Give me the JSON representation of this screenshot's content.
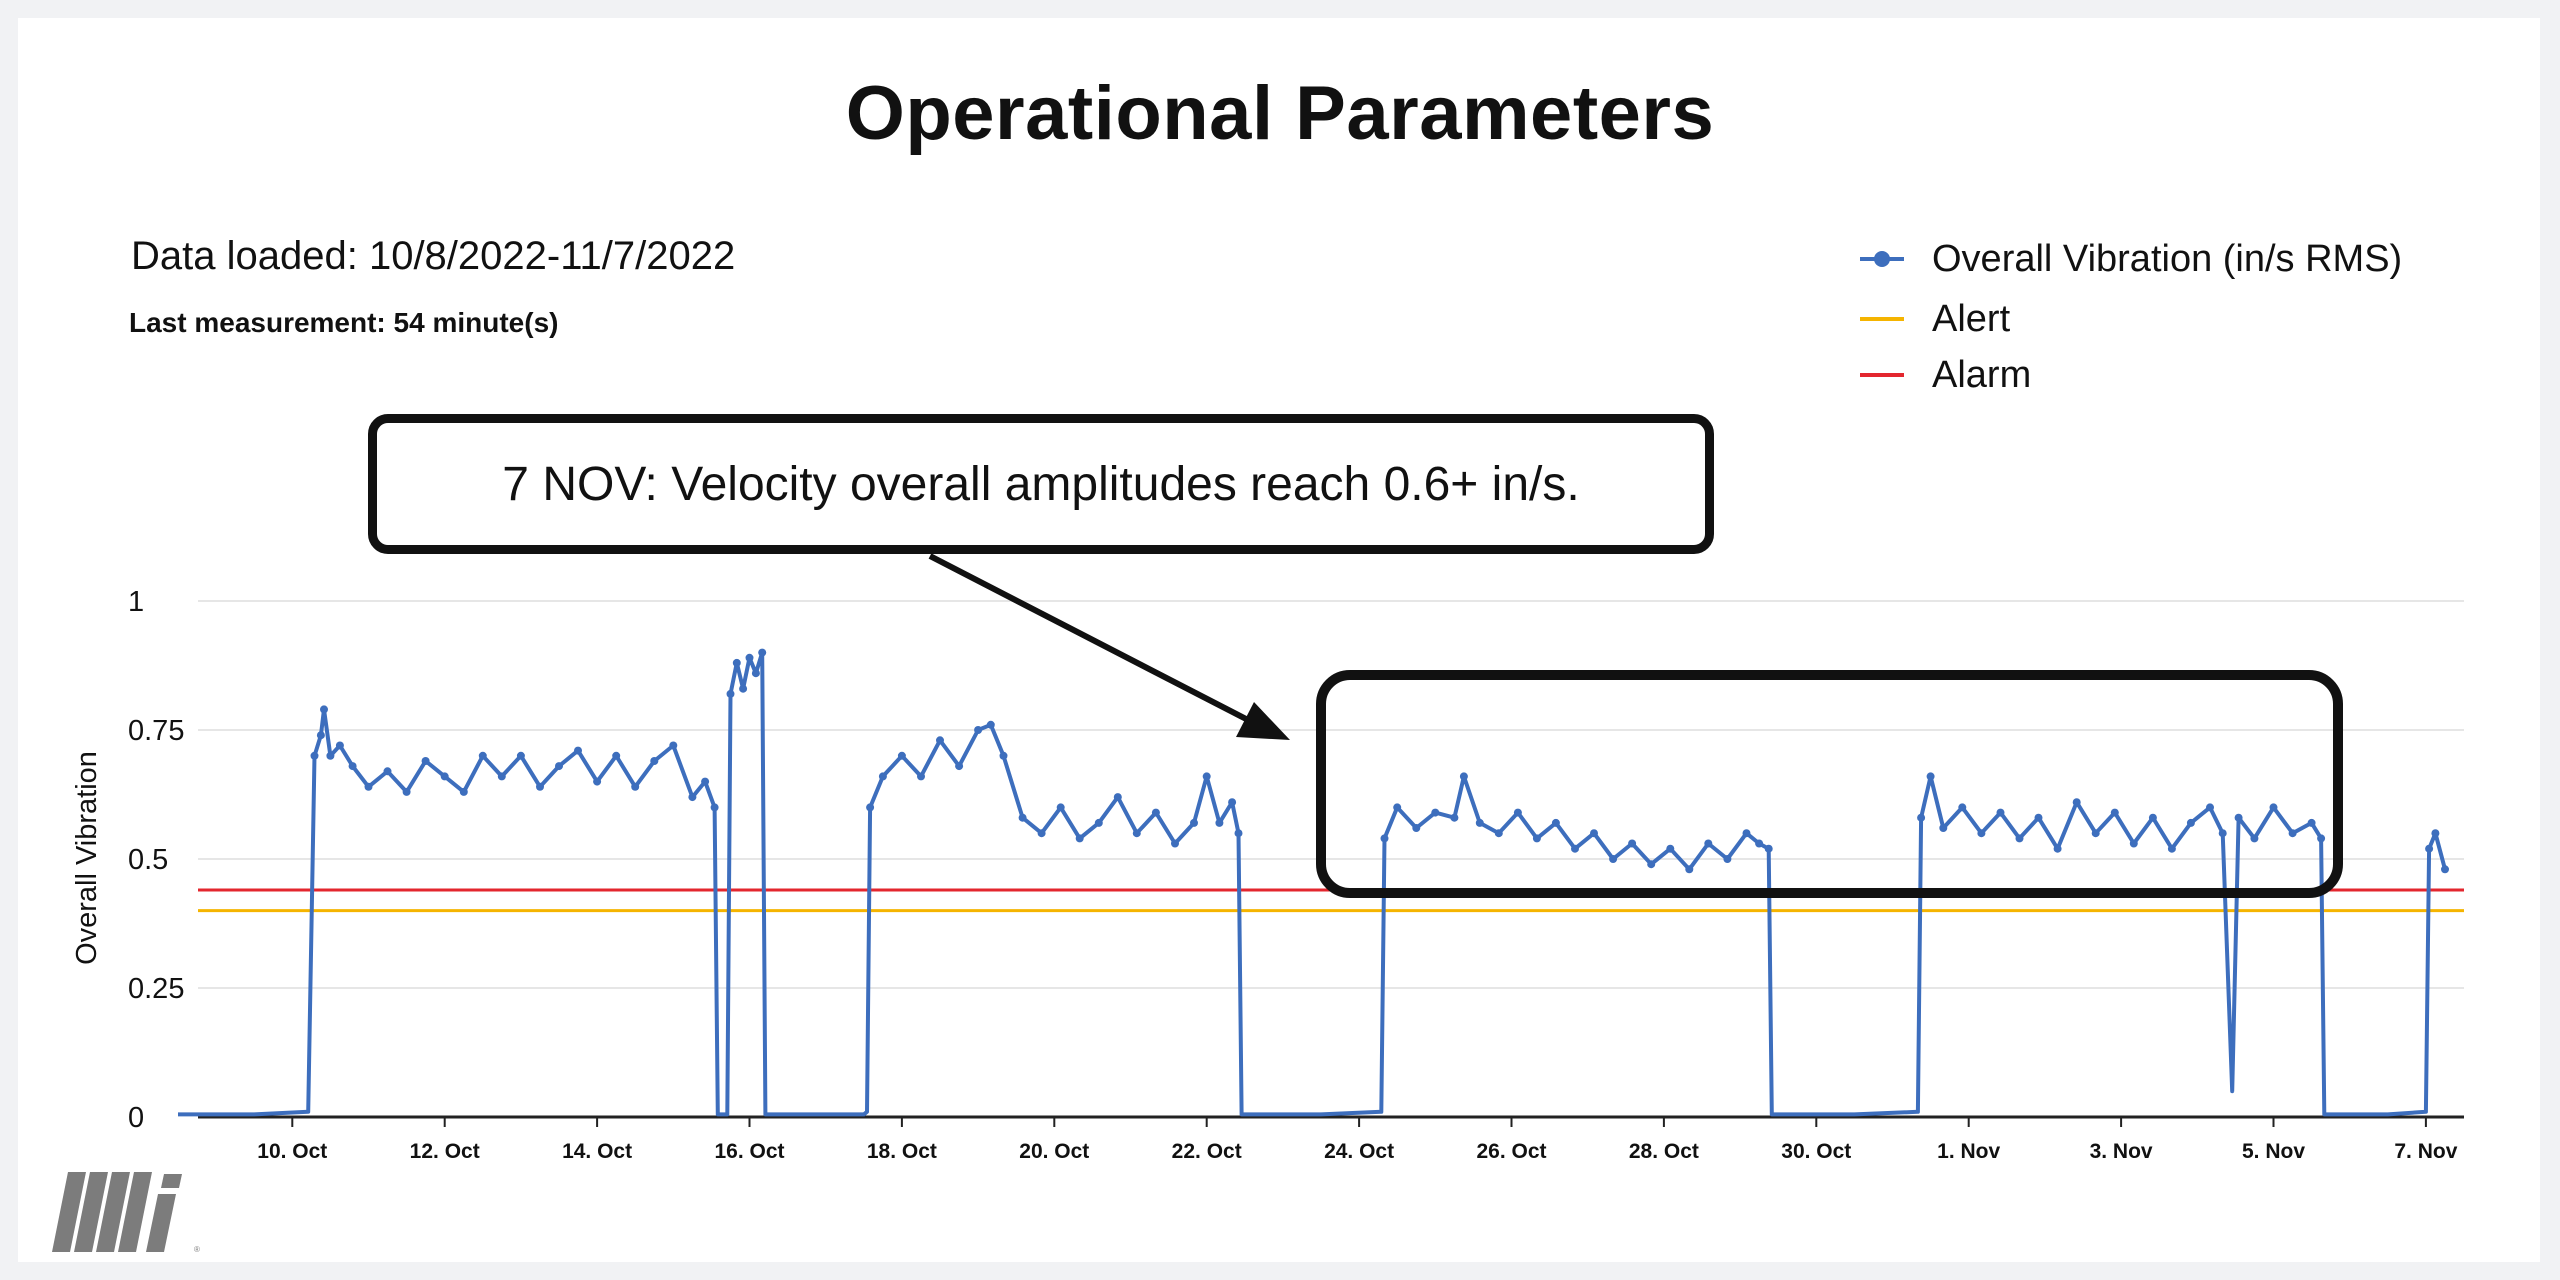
{
  "title": "Operational Parameters",
  "data_loaded": "Data loaded: 10/8/2022-11/7/2022",
  "last_measurement": "Last measurement: 54 minute(s)",
  "callout_text": "7 NOV: Velocity overall amplitudes reach 0.6+ in/s.",
  "logo_text": "Mi",
  "colors": {
    "series": "#3d6ebd",
    "alert": "#f5b400",
    "alarm": "#e3262e",
    "grid": "#e6e6e6"
  },
  "legend": [
    {
      "label": "Overall Vibration (in/s RMS)",
      "color": "#3d6ebd",
      "marker": "line-dot"
    },
    {
      "label": "Alert",
      "color": "#f5b400",
      "marker": "line"
    },
    {
      "label": "Alarm",
      "color": "#e3262e",
      "marker": "line"
    }
  ],
  "chart_data": {
    "type": "line",
    "title": "",
    "xlabel": "",
    "ylabel": "Overall Vibration",
    "ylim": [
      0,
      1
    ],
    "yticks": [
      0,
      0.25,
      0.5,
      0.75,
      1
    ],
    "ytick_labels": [
      "0",
      "0.25",
      "0.5",
      "0.75",
      "1"
    ],
    "xlim": [
      "2022-10-08T12:00",
      "2022-11-07T12:00"
    ],
    "xticks": [
      "2022-10-10",
      "2022-10-12",
      "2022-10-14",
      "2022-10-16",
      "2022-10-18",
      "2022-10-20",
      "2022-10-22",
      "2022-10-24",
      "2022-10-26",
      "2022-10-28",
      "2022-10-30",
      "2022-11-01",
      "2022-11-03",
      "2022-11-05",
      "2022-11-07"
    ],
    "xtick_labels": [
      "10. Oct",
      "12. Oct",
      "14. Oct",
      "16. Oct",
      "18. Oct",
      "20. Oct",
      "22. Oct",
      "24. Oct",
      "26. Oct",
      "28. Oct",
      "30. Oct",
      "1. Nov",
      "3. Nov",
      "5. Nov",
      "7. Nov"
    ],
    "grid": true,
    "legend_position": "top-right",
    "thresholds": [
      {
        "name": "Alert",
        "value": 0.4,
        "color": "#f5b400"
      },
      {
        "name": "Alarm",
        "value": 0.44,
        "color": "#e3262e"
      }
    ],
    "series": [
      {
        "name": "Overall Vibration (in/s RMS)",
        "color": "#3d6ebd",
        "points": [
          [
            "2022-10-08T12:00",
            0.005
          ],
          [
            "2022-10-09T12:00",
            0.005
          ],
          [
            "2022-10-10T05:00",
            0.01
          ],
          [
            "2022-10-10T07:00",
            0.7
          ],
          [
            "2022-10-10T09:00",
            0.74
          ],
          [
            "2022-10-10T10:00",
            0.79
          ],
          [
            "2022-10-10T12:00",
            0.7
          ],
          [
            "2022-10-10T15:00",
            0.72
          ],
          [
            "2022-10-10T19:00",
            0.68
          ],
          [
            "2022-10-11T00:00",
            0.64
          ],
          [
            "2022-10-11T06:00",
            0.67
          ],
          [
            "2022-10-11T12:00",
            0.63
          ],
          [
            "2022-10-11T18:00",
            0.69
          ],
          [
            "2022-10-12T00:00",
            0.66
          ],
          [
            "2022-10-12T06:00",
            0.63
          ],
          [
            "2022-10-12T12:00",
            0.7
          ],
          [
            "2022-10-12T18:00",
            0.66
          ],
          [
            "2022-10-13T00:00",
            0.7
          ],
          [
            "2022-10-13T06:00",
            0.64
          ],
          [
            "2022-10-13T12:00",
            0.68
          ],
          [
            "2022-10-13T18:00",
            0.71
          ],
          [
            "2022-10-14T00:00",
            0.65
          ],
          [
            "2022-10-14T06:00",
            0.7
          ],
          [
            "2022-10-14T12:00",
            0.64
          ],
          [
            "2022-10-14T18:00",
            0.69
          ],
          [
            "2022-10-15T00:00",
            0.72
          ],
          [
            "2022-10-15T06:00",
            0.62
          ],
          [
            "2022-10-15T10:00",
            0.65
          ],
          [
            "2022-10-15T13:00",
            0.6
          ],
          [
            "2022-10-15T14:00",
            0.005
          ],
          [
            "2022-10-15T17:00",
            0.005
          ],
          [
            "2022-10-15T18:00",
            0.82
          ],
          [
            "2022-10-15T20:00",
            0.88
          ],
          [
            "2022-10-15T22:00",
            0.83
          ],
          [
            "2022-10-16T00:00",
            0.89
          ],
          [
            "2022-10-16T02:00",
            0.86
          ],
          [
            "2022-10-16T04:00",
            0.9
          ],
          [
            "2022-10-16T05:00",
            0.005
          ],
          [
            "2022-10-17T12:00",
            0.005
          ],
          [
            "2022-10-17T13:00",
            0.01
          ],
          [
            "2022-10-17T14:00",
            0.6
          ],
          [
            "2022-10-17T18:00",
            0.66
          ],
          [
            "2022-10-18T00:00",
            0.7
          ],
          [
            "2022-10-18T06:00",
            0.66
          ],
          [
            "2022-10-18T12:00",
            0.73
          ],
          [
            "2022-10-18T18:00",
            0.68
          ],
          [
            "2022-10-19T00:00",
            0.75
          ],
          [
            "2022-10-19T04:00",
            0.76
          ],
          [
            "2022-10-19T08:00",
            0.7
          ],
          [
            "2022-10-19T14:00",
            0.58
          ],
          [
            "2022-10-19T20:00",
            0.55
          ],
          [
            "2022-10-20T02:00",
            0.6
          ],
          [
            "2022-10-20T08:00",
            0.54
          ],
          [
            "2022-10-20T14:00",
            0.57
          ],
          [
            "2022-10-20T20:00",
            0.62
          ],
          [
            "2022-10-21T02:00",
            0.55
          ],
          [
            "2022-10-21T08:00",
            0.59
          ],
          [
            "2022-10-21T14:00",
            0.53
          ],
          [
            "2022-10-21T20:00",
            0.57
          ],
          [
            "2022-10-22T00:00",
            0.66
          ],
          [
            "2022-10-22T04:00",
            0.57
          ],
          [
            "2022-10-22T08:00",
            0.61
          ],
          [
            "2022-10-22T10:00",
            0.55
          ],
          [
            "2022-10-22T11:00",
            0.005
          ],
          [
            "2022-10-23T12:00",
            0.005
          ],
          [
            "2022-10-24T07:00",
            0.01
          ],
          [
            "2022-10-24T08:00",
            0.54
          ],
          [
            "2022-10-24T12:00",
            0.6
          ],
          [
            "2022-10-24T18:00",
            0.56
          ],
          [
            "2022-10-25T00:00",
            0.59
          ],
          [
            "2022-10-25T06:00",
            0.58
          ],
          [
            "2022-10-25T09:00",
            0.66
          ],
          [
            "2022-10-25T14:00",
            0.57
          ],
          [
            "2022-10-25T20:00",
            0.55
          ],
          [
            "2022-10-26T02:00",
            0.59
          ],
          [
            "2022-10-26T08:00",
            0.54
          ],
          [
            "2022-10-26T14:00",
            0.57
          ],
          [
            "2022-10-26T20:00",
            0.52
          ],
          [
            "2022-10-27T02:00",
            0.55
          ],
          [
            "2022-10-27T08:00",
            0.5
          ],
          [
            "2022-10-27T14:00",
            0.53
          ],
          [
            "2022-10-27T20:00",
            0.49
          ],
          [
            "2022-10-28T02:00",
            0.52
          ],
          [
            "2022-10-28T08:00",
            0.48
          ],
          [
            "2022-10-28T14:00",
            0.53
          ],
          [
            "2022-10-28T20:00",
            0.5
          ],
          [
            "2022-10-29T02:00",
            0.55
          ],
          [
            "2022-10-29T06:00",
            0.53
          ],
          [
            "2022-10-29T09:00",
            0.52
          ],
          [
            "2022-10-29T10:00",
            0.005
          ],
          [
            "2022-10-30T12:00",
            0.005
          ],
          [
            "2022-10-31T08:00",
            0.01
          ],
          [
            "2022-10-31T09:00",
            0.58
          ],
          [
            "2022-10-31T12:00",
            0.66
          ],
          [
            "2022-10-31T16:00",
            0.56
          ],
          [
            "2022-10-31T22:00",
            0.6
          ],
          [
            "2022-11-01T04:00",
            0.55
          ],
          [
            "2022-11-01T10:00",
            0.59
          ],
          [
            "2022-11-01T16:00",
            0.54
          ],
          [
            "2022-11-01T22:00",
            0.58
          ],
          [
            "2022-11-02T04:00",
            0.52
          ],
          [
            "2022-11-02T10:00",
            0.61
          ],
          [
            "2022-11-02T16:00",
            0.55
          ],
          [
            "2022-11-02T22:00",
            0.59
          ],
          [
            "2022-11-03T04:00",
            0.53
          ],
          [
            "2022-11-03T10:00",
            0.58
          ],
          [
            "2022-11-03T16:00",
            0.52
          ],
          [
            "2022-11-03T22:00",
            0.57
          ],
          [
            "2022-11-04T04:00",
            0.6
          ],
          [
            "2022-11-04T08:00",
            0.55
          ],
          [
            "2022-11-04T11:00",
            0.05
          ],
          [
            "2022-11-04T13:00",
            0.58
          ],
          [
            "2022-11-04T18:00",
            0.54
          ],
          [
            "2022-11-05T00:00",
            0.6
          ],
          [
            "2022-11-05T06:00",
            0.55
          ],
          [
            "2022-11-05T12:00",
            0.57
          ],
          [
            "2022-11-05T15:00",
            0.54
          ],
          [
            "2022-11-05T16:00",
            0.005
          ],
          [
            "2022-11-06T12:00",
            0.005
          ],
          [
            "2022-11-07T00:00",
            0.01
          ],
          [
            "2022-11-07T01:00",
            0.52
          ],
          [
            "2022-11-07T03:00",
            0.55
          ],
          [
            "2022-11-07T06:00",
            0.48
          ]
        ]
      }
    ]
  }
}
